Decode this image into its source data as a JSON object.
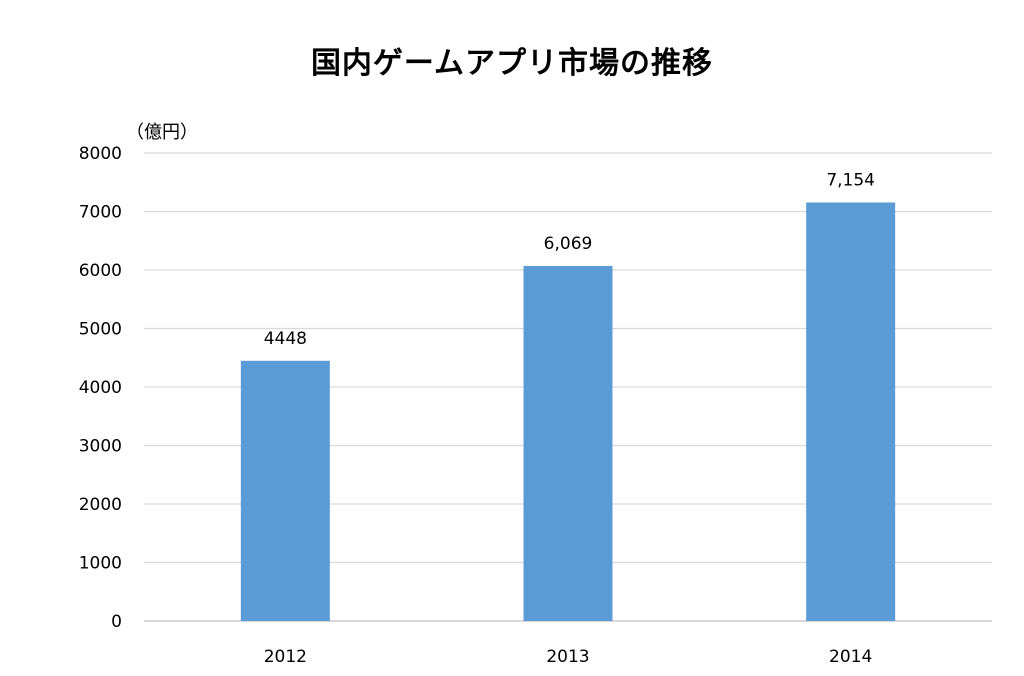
{
  "chart_data": {
    "type": "bar",
    "title": "国内ゲームアプリ市場の推移",
    "unit_label": "（億円）",
    "categories": [
      "2012",
      "2013",
      "2014"
    ],
    "values": [
      4448,
      6069,
      7154
    ],
    "data_labels": [
      "4448",
      "6,069",
      "7,154"
    ],
    "ylim": [
      0,
      8000
    ],
    "y_ticks": [
      0,
      1000,
      2000,
      3000,
      4000,
      5000,
      6000,
      7000,
      8000
    ],
    "xlabel": "",
    "ylabel": "",
    "grid": true,
    "legend": "none",
    "colors": {
      "bar": "#5B9BD5",
      "grid": "#D9D9D9",
      "axis": "#BFBFBF"
    }
  }
}
